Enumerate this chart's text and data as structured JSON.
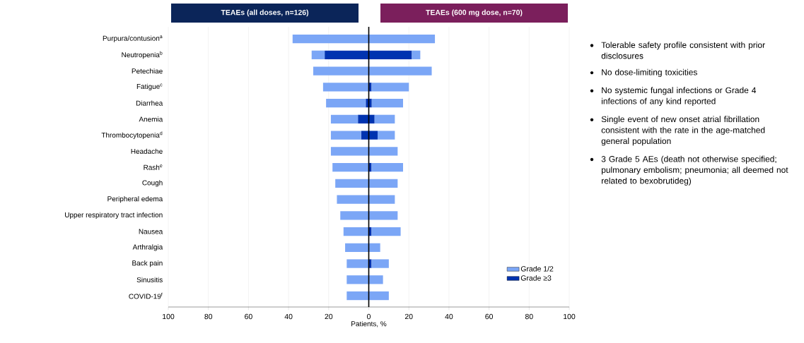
{
  "chart_data": {
    "type": "bar",
    "orientation": "horizontal",
    "stacked": true,
    "xlabel": "Patients, %",
    "categories": [
      "Purpura/contusion$^{a}$",
      "Neutropenia$^{b}$",
      "Petechiae",
      "Fatigue$^{c}$",
      "Diarrhea",
      "Anemia",
      "Thrombocytopenia$^{d}$",
      "Headache",
      "Rash$^{e}$",
      "Cough",
      "Peripheral edema",
      "Upper respiratory tract infection",
      "Nausea",
      "Arthralgia",
      "Back pain",
      "Sinusitis",
      "COVID-19$^{f}$"
    ],
    "series": [
      {
        "name": "Grade ≥3",
        "color": "#0033b0",
        "values": [
          null,
          -22.0,
          null,
          null,
          -1.5,
          -5.4,
          -3.8,
          null,
          null,
          null,
          null,
          null,
          null,
          null,
          null,
          null,
          null
        ]
      },
      {
        "name": "Grade 1/2",
        "color": "#7ba6f6",
        "values": [
          -38.0,
          -6.5,
          -27.7,
          -22.8,
          -19.8,
          -13.5,
          -15.1,
          -18.9,
          -18.1,
          -16.7,
          -15.9,
          -14.2,
          -12.6,
          -11.8,
          -11.0,
          -11.0,
          -11.0
        ]
      },
      {
        "color": "#0033b0",
        "values": [
          null,
          21.5,
          null,
          1.4,
          1.5,
          2.9,
          4.4,
          null,
          1.4,
          null,
          null,
          null,
          1.4,
          null,
          1.4,
          null,
          null
        ]
      },
      {
        "color": "#7ba6f6",
        "values": [
          33.0,
          4.2,
          31.4,
          18.6,
          15.6,
          10.1,
          8.6,
          14.4,
          15.7,
          14.4,
          13.0,
          14.4,
          14.5,
          5.7,
          8.6,
          7.1,
          10.0
        ]
      }
    ],
    "xlim": [
      -100,
      100
    ],
    "xticks": [
      {
        "value": -100,
        "label": "100"
      },
      {
        "value": -80,
        "label": "80"
      },
      {
        "value": -60,
        "label": "60"
      },
      {
        "value": -40,
        "label": "40"
      },
      {
        "value": -20,
        "label": "20"
      },
      0,
      20,
      40,
      60,
      80,
      100
    ],
    "grid": "x",
    "legend": "bottom right",
    "annotations": [
      "TEAEs (all doses, n=126)",
      "TEAEs (600 mg dose, n=70)",
      "Tolerable safety profile consistent with prior disclosures",
      "No dose-limiting toxicities",
      "No systemic fungal infections or Grade 4 infections of any kind reported",
      "Single event of new onset atrial fibrillation consistent with the rate in the age-matched general population",
      "3 Grade 5 AEs (death not otherwise specified; pulmonary embolism; pneumonia; all deemed not related to bexobrutideg)"
    ]
  }
}
